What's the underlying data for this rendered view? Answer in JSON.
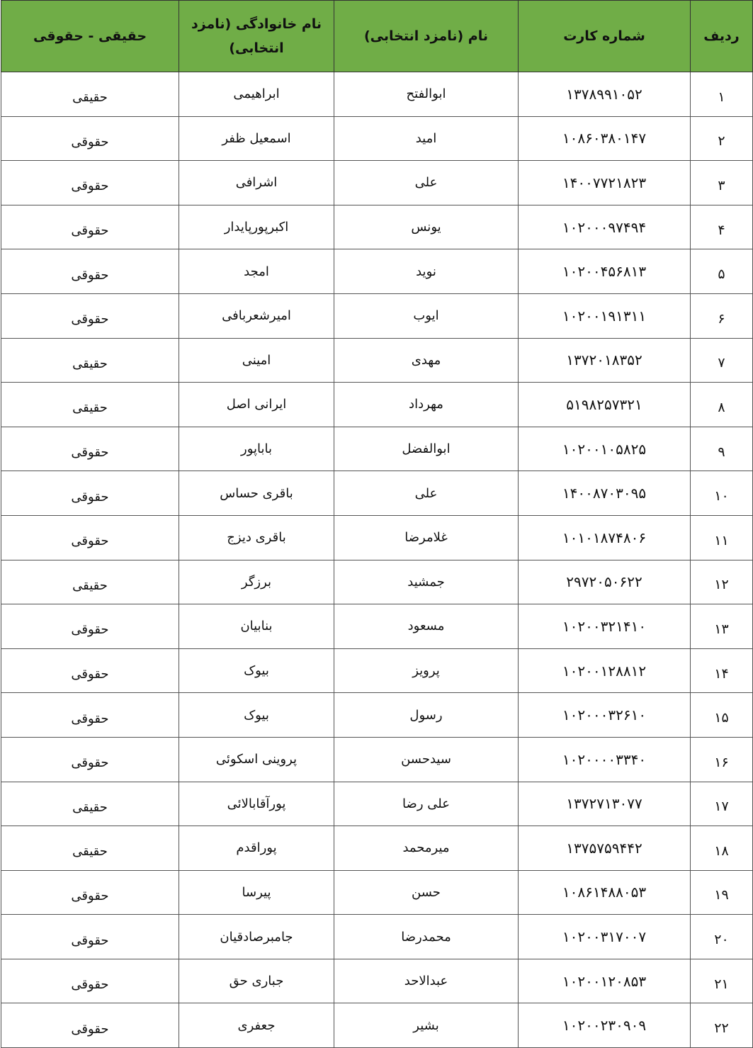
{
  "table": {
    "headers": {
      "index": "ردیف",
      "card": "شماره کارت",
      "first_name": "نام (نامزد انتخابی)",
      "last_name": "نام خانوادگی (نامزد انتخابی)",
      "type": "حقیقی - حقوقی"
    },
    "header_color": "#70ad47",
    "rows": [
      {
        "index": "۱",
        "card": "۱۳۷۸۹۹۱۰۵۲",
        "first_name": "ابوالفتح",
        "last_name": "ابراهیمی",
        "type": "حقیقی"
      },
      {
        "index": "۲",
        "card": "۱۰۸۶۰۳۸۰۱۴۷",
        "first_name": "امید",
        "last_name": "اسمعیل ظفر",
        "type": "حقوقی"
      },
      {
        "index": "۳",
        "card": "۱۴۰۰۷۷۲۱۸۲۳",
        "first_name": "علی",
        "last_name": "اشرافی",
        "type": "حقوقی"
      },
      {
        "index": "۴",
        "card": "۱۰۲۰۰۰۹۷۴۹۴",
        "first_name": "یونس",
        "last_name": "اکبرپورپایدار",
        "type": "حقوقی"
      },
      {
        "index": "۵",
        "card": "۱۰۲۰۰۴۵۶۸۱۳",
        "first_name": "نوید",
        "last_name": "امجد",
        "type": "حقوقی"
      },
      {
        "index": "۶",
        "card": "۱۰۲۰۰۱۹۱۳۱۱",
        "first_name": "ایوب",
        "last_name": "امیرشعربافی",
        "type": "حقوقی"
      },
      {
        "index": "۷",
        "card": "۱۳۷۲۰۱۸۳۵۲",
        "first_name": "مهدی",
        "last_name": "امینی",
        "type": "حقیقی"
      },
      {
        "index": "۸",
        "card": "۵۱۹۸۲۵۷۳۲۱",
        "first_name": "مهرداد",
        "last_name": "ایرانی اصل",
        "type": "حقیقی"
      },
      {
        "index": "۹",
        "card": "۱۰۲۰۰۱۰۵۸۲۵",
        "first_name": "ابوالفضل",
        "last_name": "باباپور",
        "type": "حقوقی"
      },
      {
        "index": "۱۰",
        "card": "۱۴۰۰۸۷۰۳۰۹۵",
        "first_name": "علی",
        "last_name": "باقری حساس",
        "type": "حقوقی"
      },
      {
        "index": "۱۱",
        "card": "۱۰۱۰۱۸۷۴۸۰۶",
        "first_name": "غلامرضا",
        "last_name": "باقری دیزج",
        "type": "حقوقی"
      },
      {
        "index": "۱۲",
        "card": "۲۹۷۲۰۵۰۶۲۲",
        "first_name": "جمشید",
        "last_name": "برزگر",
        "type": "حقیقی"
      },
      {
        "index": "۱۳",
        "card": "۱۰۲۰۰۳۲۱۴۱۰",
        "first_name": "مسعود",
        "last_name": "بنابیان",
        "type": "حقوقی"
      },
      {
        "index": "۱۴",
        "card": "۱۰۲۰۰۱۲۸۸۱۲",
        "first_name": "پرویز",
        "last_name": "بیوک",
        "type": "حقوقی"
      },
      {
        "index": "۱۵",
        "card": "۱۰۲۰۰۰۳۲۶۱۰",
        "first_name": "رسول",
        "last_name": "بیوک",
        "type": "حقوقی"
      },
      {
        "index": "۱۶",
        "card": "۱۰۲۰۰۰۰۳۳۴۰",
        "first_name": "سیدحسن",
        "last_name": "پروینی اسکوئی",
        "type": "حقوقی"
      },
      {
        "index": "۱۷",
        "card": "۱۳۷۲۷۱۳۰۷۷",
        "first_name": "علی رضا",
        "last_name": "پورآقابالائی",
        "type": "حقیقی"
      },
      {
        "index": "۱۸",
        "card": "۱۳۷۵۷۵۹۴۴۲",
        "first_name": "میرمحمد",
        "last_name": "پوراقدم",
        "type": "حقیقی"
      },
      {
        "index": "۱۹",
        "card": "۱۰۸۶۱۴۸۸۰۵۳",
        "first_name": "حسن",
        "last_name": "پیرسا",
        "type": "حقوقی"
      },
      {
        "index": "۲۰",
        "card": "۱۰۲۰۰۳۱۷۰۰۷",
        "first_name": "محمدرضا",
        "last_name": "جامبرصادقیان",
        "type": "حقوقی"
      },
      {
        "index": "۲۱",
        "card": "۱۰۲۰۰۱۲۰۸۵۳",
        "first_name": "عبدالاحد",
        "last_name": "جباری حق",
        "type": "حقوقی"
      },
      {
        "index": "۲۲",
        "card": "۱۰۲۰۰۲۳۰۹۰۹",
        "first_name": "بشیر",
        "last_name": "جعفری",
        "type": "حقوقی"
      }
    ]
  }
}
